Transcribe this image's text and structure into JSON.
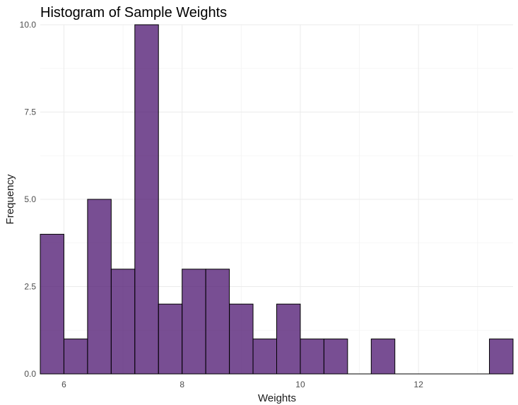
{
  "chart_data": {
    "type": "bar",
    "title": "Histogram of Sample Weights",
    "xlabel": "Weights",
    "ylabel": "Frequency",
    "bin_width": 0.4,
    "bin_starts": [
      5.6,
      6.0,
      6.4,
      6.8,
      7.2,
      7.6,
      8.0,
      8.4,
      8.8,
      9.2,
      9.6,
      10.0,
      10.4,
      10.8,
      11.2,
      11.6,
      12.0,
      12.4,
      12.8,
      13.2
    ],
    "values": [
      4,
      1,
      5,
      3,
      10,
      2,
      3,
      3,
      2,
      1,
      2,
      1,
      1,
      0,
      1,
      0,
      0,
      0,
      0,
      1
    ],
    "xlim": [
      5.6,
      13.6
    ],
    "ylim": [
      0,
      10
    ],
    "x_ticks": [
      6,
      8,
      10,
      12
    ],
    "x_tick_labels": [
      "6",
      "8",
      "10",
      "12"
    ],
    "y_ticks": [
      0,
      2.5,
      5,
      7.5,
      10
    ],
    "y_tick_labels": [
      "0.0",
      "2.5",
      "5.0",
      "7.5",
      "10.0"
    ],
    "bar_fill": "#4B136F",
    "bar_fill_opacity": 0.75,
    "bar_stroke": "#000000",
    "grid": true,
    "legend": "none"
  }
}
